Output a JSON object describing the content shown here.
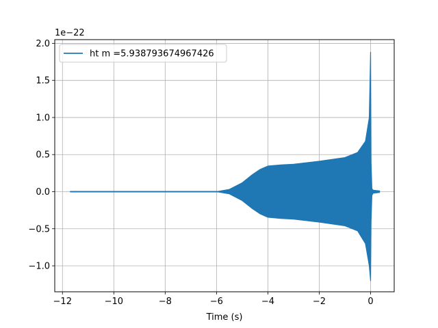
{
  "chart_data": {
    "type": "line",
    "title": "",
    "xlabel": "Time (s)",
    "ylabel": "",
    "y_offset_label": "1e−22",
    "xlim": [
      -12.3,
      0.92
    ],
    "ylim": [
      -1.35,
      2.05
    ],
    "x_ticks": [
      -12,
      -10,
      -8,
      -6,
      -4,
      -2,
      0
    ],
    "x_tick_labels": [
      "−12",
      "−10",
      "−8",
      "−6",
      "−4",
      "−2",
      "0"
    ],
    "y_ticks": [
      -1.0,
      -0.5,
      0.0,
      0.5,
      1.0,
      1.5,
      2.0
    ],
    "y_tick_labels": [
      "−1.0",
      "−0.5",
      "0.0",
      "0.5",
      "1.0",
      "1.5",
      "2.0"
    ],
    "grid": true,
    "legend_position": "top-left",
    "series": [
      {
        "name": "ht m =5.938793674967426",
        "color": "#1f77b4",
        "envelope_x": [
          -11.7,
          -7.0,
          -6.0,
          -5.5,
          -5.0,
          -4.6,
          -4.3,
          -4.0,
          -3.5,
          -3.0,
          -2.0,
          -1.0,
          -0.5,
          -0.2,
          -0.05,
          0.0,
          0.02,
          0.05,
          0.1,
          0.35
        ],
        "envelope_upper": [
          0.0,
          0.0,
          0.0,
          0.03,
          0.12,
          0.23,
          0.3,
          0.345,
          0.36,
          0.37,
          0.41,
          0.46,
          0.53,
          0.68,
          1.0,
          1.88,
          0.4,
          0.04,
          0.02,
          0.01
        ],
        "envelope_lower": [
          0.0,
          0.0,
          0.0,
          -0.03,
          -0.12,
          -0.23,
          -0.3,
          -0.345,
          -0.36,
          -0.37,
          -0.41,
          -0.46,
          -0.53,
          -0.7,
          -1.0,
          -1.2,
          -0.4,
          -0.05,
          -0.02,
          -0.01
        ]
      }
    ]
  }
}
